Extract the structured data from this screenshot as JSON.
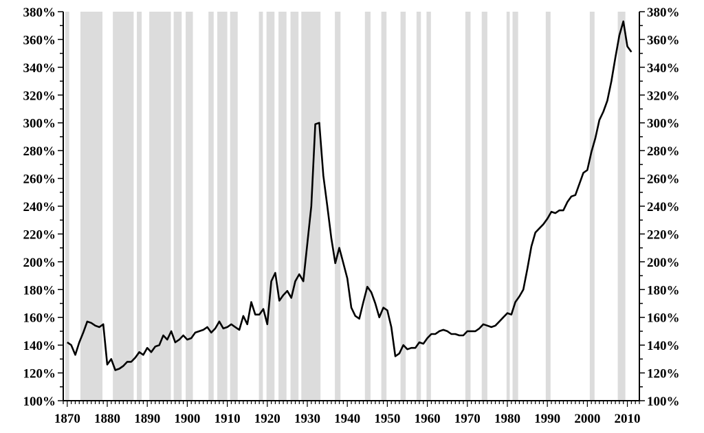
{
  "chart_data": {
    "type": "line",
    "title": "",
    "xlabel": "",
    "ylabel": "",
    "xlim": [
      1869,
      2013
    ],
    "ylim": [
      100,
      380
    ],
    "grid": false,
    "legend": "none",
    "colors": {
      "line": "#000000",
      "recession_band": "#dcdcdc",
      "axis": "#000000"
    },
    "x_tick_labels": [
      "1870",
      "1880",
      "1890",
      "1900",
      "1910",
      "1920",
      "1930",
      "1940",
      "1950",
      "1960",
      "1970",
      "1980",
      "1990",
      "2000",
      "2010"
    ],
    "y_tick_labels": [
      "100%",
      "120%",
      "140%",
      "160%",
      "180%",
      "200%",
      "220%",
      "240%",
      "260%",
      "280%",
      "300%",
      "320%",
      "340%",
      "360%",
      "380%"
    ],
    "recession_bands": [
      [
        1869.5,
        1870.5
      ],
      [
        1873.3,
        1878.8
      ],
      [
        1881.4,
        1886.6
      ],
      [
        1887.4,
        1888.6
      ],
      [
        1890.5,
        1895.9
      ],
      [
        1896.6,
        1898.6
      ],
      [
        1899.6,
        1901.4
      ],
      [
        1905.3,
        1906.6
      ],
      [
        1907.5,
        1910.0
      ],
      [
        1910.7,
        1912.6
      ],
      [
        1917.9,
        1918.9
      ],
      [
        1919.8,
        1921.8
      ],
      [
        1922.8,
        1924.8
      ],
      [
        1925.8,
        1927.8
      ],
      [
        1928.5,
        1933.3
      ],
      [
        1936.9,
        1938.3
      ],
      [
        1944.4,
        1945.8
      ],
      [
        1948.5,
        1949.8
      ],
      [
        1953.3,
        1954.6
      ],
      [
        1957.3,
        1958.4
      ],
      [
        1959.8,
        1960.9
      ],
      [
        1969.5,
        1970.8
      ],
      [
        1973.6,
        1975.0
      ],
      [
        1979.8,
        1980.6
      ],
      [
        1981.3,
        1982.7
      ],
      [
        1989.6,
        1990.8
      ],
      [
        2000.6,
        2001.8
      ],
      [
        2007.6,
        2009.5
      ]
    ],
    "series": [
      {
        "x": [
          1870,
          1871,
          1872,
          1873,
          1874,
          1875,
          1876,
          1877,
          1878,
          1879,
          1880,
          1881,
          1882,
          1883,
          1884,
          1885,
          1886,
          1887,
          1888,
          1889,
          1890,
          1891,
          1892,
          1893,
          1894,
          1895,
          1896,
          1897,
          1898,
          1899,
          1900,
          1901,
          1902,
          1903,
          1904,
          1905,
          1906,
          1907,
          1908,
          1909,
          1910,
          1911,
          1912,
          1913,
          1914,
          1915,
          1916,
          1917,
          1918,
          1919,
          1920,
          1921,
          1922,
          1923,
          1924,
          1925,
          1926,
          1927,
          1928,
          1929,
          1930,
          1931,
          1932,
          1933,
          1934,
          1935,
          1936,
          1937,
          1938,
          1939,
          1940,
          1941,
          1942,
          1943,
          1944,
          1945,
          1946,
          1947,
          1948,
          1949,
          1950,
          1951,
          1952,
          1953,
          1954,
          1955,
          1956,
          1957,
          1958,
          1959,
          1960,
          1961,
          1962,
          1963,
          1964,
          1965,
          1966,
          1967,
          1968,
          1969,
          1970,
          1971,
          1972,
          1973,
          1974,
          1975,
          1976,
          1977,
          1978,
          1979,
          1980,
          1981,
          1982,
          1983,
          1984,
          1985,
          1986,
          1987,
          1988,
          1989,
          1990,
          1991,
          1992,
          1993,
          1994,
          1995,
          1996,
          1997,
          1998,
          1999,
          2000,
          2001,
          2002,
          2003,
          2004,
          2005,
          2006,
          2007,
          2008,
          2009,
          2010,
          2011
        ],
        "values": [
          142,
          140,
          133,
          142,
          149,
          157,
          156,
          154,
          153,
          155,
          126,
          130,
          122,
          123,
          125,
          128,
          128,
          131,
          135,
          133,
          138,
          135,
          139,
          140,
          147,
          144,
          150,
          142,
          144,
          147,
          144,
          145,
          149,
          150,
          151,
          153,
          149,
          152,
          157,
          152,
          153,
          155,
          153,
          151,
          161,
          155,
          171,
          162,
          162,
          166,
          155,
          186,
          192,
          172,
          176,
          179,
          174,
          186,
          191,
          186,
          213,
          240,
          299,
          300,
          262,
          240,
          217,
          199,
          210,
          199,
          188,
          167,
          161,
          159,
          171,
          182,
          178,
          170,
          160,
          167,
          165,
          153,
          132,
          134,
          140,
          137,
          138,
          138,
          142,
          141,
          145,
          148,
          148,
          150,
          151,
          150,
          148,
          148,
          147,
          147,
          150,
          150,
          150,
          152,
          155,
          154,
          153,
          154,
          157,
          160,
          163,
          162,
          171,
          175,
          180,
          195,
          211,
          221,
          224,
          227,
          231,
          236,
          235,
          237,
          237,
          243,
          247,
          248,
          256,
          264,
          266,
          279,
          289,
          302,
          308,
          316,
          330,
          347,
          363,
          373,
          355,
          351
        ]
      }
    ]
  }
}
